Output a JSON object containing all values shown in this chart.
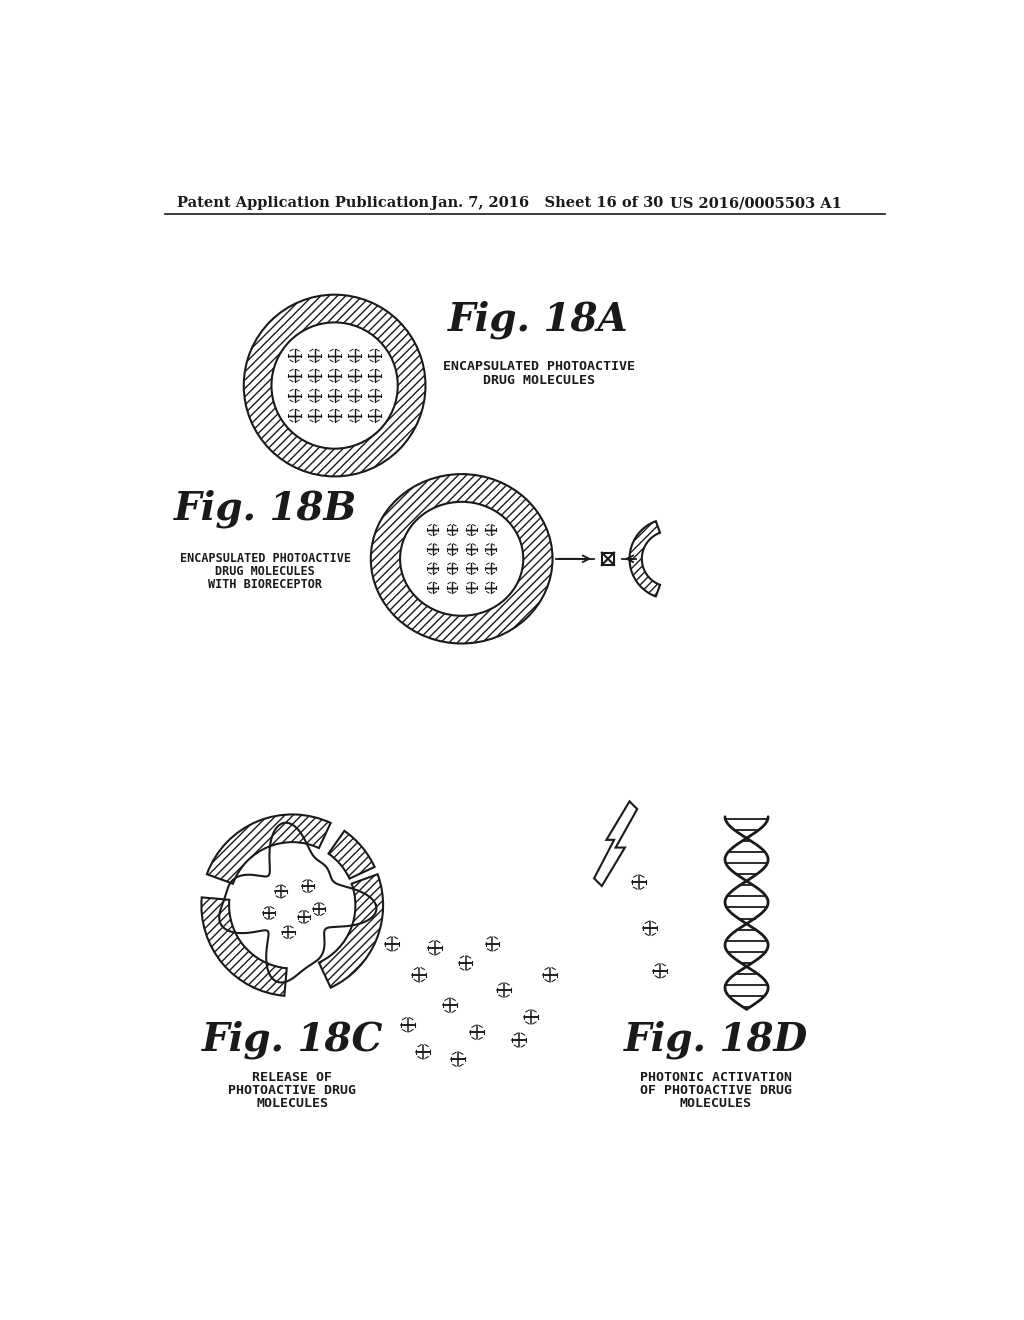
{
  "header_left": "Patent Application Publication",
  "header_mid": "Jan. 7, 2016   Sheet 16 of 30",
  "header_right": "US 2016/0005503 A1",
  "fig18A_title": "Fig. 18A",
  "fig18A_label1": "ENCAPSULATED PHOTOACTIVE",
  "fig18A_label2": "DRUG MOLECULES",
  "fig18B_title": "Fig. 18B",
  "fig18B_label1": "ENCAPSULATED PHOTOACTIVE",
  "fig18B_label2": "DRUG MOLECULES",
  "fig18B_label3": "WITH BIORECEPTOR",
  "fig18C_title": "Fig. 18C",
  "fig18C_label1": "RELEASE OF",
  "fig18C_label2": "PHOTOACTIVE DRUG",
  "fig18C_label3": "MOLECULES",
  "fig18D_title": "Fig. 18D",
  "fig18D_label1": "PHOTONIC ACTIVATION",
  "fig18D_label2": "OF PHOTOACTIVE DRUG",
  "fig18D_label3": "MOLECULES",
  "bg_color": "#ffffff",
  "line_color": "#1a1a1a"
}
